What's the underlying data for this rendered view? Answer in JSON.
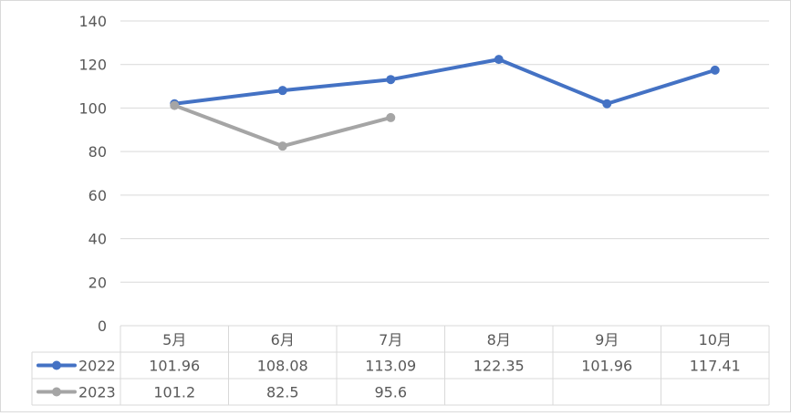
{
  "chart_data": {
    "type": "line",
    "categories": [
      "5月",
      "6月",
      "7月",
      "8月",
      "9月",
      "10月"
    ],
    "series": [
      {
        "name": "2022",
        "values": [
          101.96,
          108.08,
          113.09,
          122.35,
          101.96,
          117.41
        ],
        "color": "#4472C4"
      },
      {
        "name": "2023",
        "values": [
          101.2,
          82.5,
          95.6,
          null,
          null,
          null
        ],
        "color": "#A5A5A5"
      }
    ],
    "table_values": [
      [
        "101.96",
        "108.08",
        "113.09",
        "122.35",
        "101.96",
        "117.41"
      ],
      [
        "101.2",
        "82.5",
        "95.6",
        "",
        "",
        ""
      ]
    ],
    "ylim": [
      0,
      140
    ],
    "yticks": [
      0,
      20,
      40,
      60,
      80,
      100,
      120,
      140
    ],
    "grid": true,
    "legend": "data-table"
  }
}
